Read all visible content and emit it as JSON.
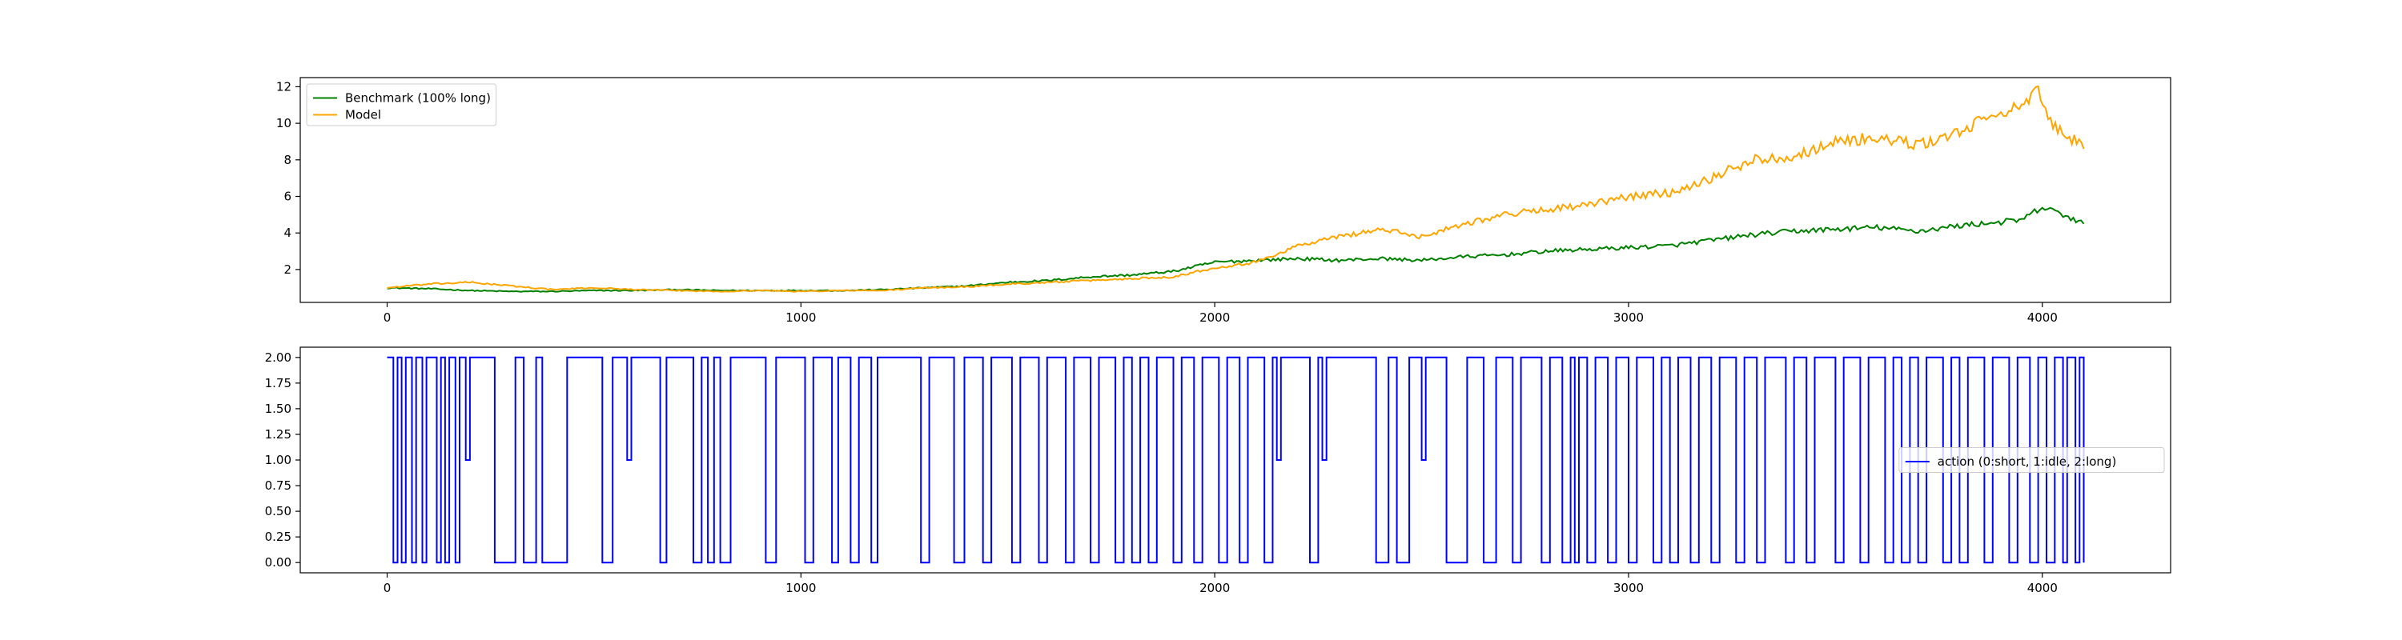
{
  "chart_data": [
    {
      "type": "line",
      "title": "",
      "xlabel": "",
      "ylabel": "",
      "xlim": [
        -210,
        4310
      ],
      "ylim": [
        0.2,
        12.5
      ],
      "xticks": [
        0,
        1000,
        2000,
        3000,
        4000
      ],
      "yticks": [
        2,
        4,
        6,
        8,
        10,
        12
      ],
      "ytick_labels": [
        "2",
        "4",
        "6",
        "8",
        "10",
        "12"
      ],
      "legend_position": "upper left",
      "grid": false,
      "x_range": [
        0,
        4100
      ],
      "series": [
        {
          "name": "Benchmark (100% long)",
          "color": "#008000",
          "points": [
            [
              0,
              1.0
            ],
            [
              100,
              0.95
            ],
            [
              200,
              0.85
            ],
            [
              300,
              0.8
            ],
            [
              400,
              0.8
            ],
            [
              500,
              0.85
            ],
            [
              600,
              0.85
            ],
            [
              700,
              0.9
            ],
            [
              800,
              0.85
            ],
            [
              900,
              0.85
            ],
            [
              1000,
              0.85
            ],
            [
              1100,
              0.85
            ],
            [
              1200,
              0.9
            ],
            [
              1300,
              1.0
            ],
            [
              1400,
              1.1
            ],
            [
              1500,
              1.3
            ],
            [
              1600,
              1.4
            ],
            [
              1700,
              1.6
            ],
            [
              1800,
              1.7
            ],
            [
              1900,
              1.9
            ],
            [
              2000,
              2.4
            ],
            [
              2100,
              2.5
            ],
            [
              2200,
              2.6
            ],
            [
              2300,
              2.5
            ],
            [
              2400,
              2.6
            ],
            [
              2500,
              2.5
            ],
            [
              2600,
              2.7
            ],
            [
              2700,
              2.8
            ],
            [
              2800,
              3.0
            ],
            [
              2900,
              3.1
            ],
            [
              3000,
              3.2
            ],
            [
              3100,
              3.3
            ],
            [
              3200,
              3.6
            ],
            [
              3300,
              3.9
            ],
            [
              3400,
              4.1
            ],
            [
              3500,
              4.2
            ],
            [
              3600,
              4.3
            ],
            [
              3700,
              4.1
            ],
            [
              3800,
              4.4
            ],
            [
              3900,
              4.6
            ],
            [
              3950,
              4.7
            ],
            [
              4000,
              5.4
            ],
            [
              4050,
              5.0
            ],
            [
              4100,
              4.5
            ]
          ]
        },
        {
          "name": "Model",
          "color": "#ffa500",
          "points": [
            [
              0,
              1.0
            ],
            [
              100,
              1.2
            ],
            [
              200,
              1.3
            ],
            [
              300,
              1.1
            ],
            [
              400,
              0.9
            ],
            [
              500,
              1.0
            ],
            [
              600,
              0.9
            ],
            [
              700,
              0.85
            ],
            [
              800,
              0.8
            ],
            [
              900,
              0.85
            ],
            [
              1000,
              0.8
            ],
            [
              1100,
              0.85
            ],
            [
              1200,
              0.85
            ],
            [
              1300,
              1.0
            ],
            [
              1400,
              1.05
            ],
            [
              1500,
              1.2
            ],
            [
              1600,
              1.3
            ],
            [
              1700,
              1.4
            ],
            [
              1800,
              1.5
            ],
            [
              1900,
              1.6
            ],
            [
              2000,
              2.1
            ],
            [
              2100,
              2.4
            ],
            [
              2200,
              3.3
            ],
            [
              2300,
              3.8
            ],
            [
              2400,
              4.2
            ],
            [
              2500,
              3.8
            ],
            [
              2600,
              4.5
            ],
            [
              2700,
              5.0
            ],
            [
              2800,
              5.3
            ],
            [
              2900,
              5.5
            ],
            [
              3000,
              6.0
            ],
            [
              3100,
              6.2
            ],
            [
              3200,
              7.0
            ],
            [
              3300,
              8.0
            ],
            [
              3400,
              8.2
            ],
            [
              3500,
              9.0
            ],
            [
              3600,
              9.2
            ],
            [
              3700,
              8.8
            ],
            [
              3800,
              9.5
            ],
            [
              3900,
              10.7
            ],
            [
              3950,
              10.8
            ],
            [
              3990,
              11.8
            ],
            [
              4020,
              10.0
            ],
            [
              4060,
              9.4
            ],
            [
              4100,
              8.6
            ]
          ]
        }
      ]
    },
    {
      "type": "line",
      "title": "",
      "xlabel": "",
      "ylabel": "",
      "xlim": [
        -210,
        4310
      ],
      "ylim": [
        -0.1,
        2.1
      ],
      "xticks": [
        0,
        1000,
        2000,
        3000,
        4000
      ],
      "yticks": [
        0,
        0.25,
        0.5,
        0.75,
        1.0,
        1.25,
        1.5,
        1.75,
        2.0
      ],
      "ytick_labels": [
        "0.00",
        "0.25",
        "0.50",
        "0.75",
        "1.00",
        "1.25",
        "1.50",
        "1.75",
        "2.00"
      ],
      "legend_position": "center right",
      "grid": false,
      "x_range": [
        0,
        4100
      ],
      "series": [
        {
          "name": "action (0:short, 1:idle, 2:long)",
          "color": "#0000ff",
          "drawstyle": "steps",
          "segments": [
            [
              0,
              2
            ],
            [
              15,
              0
            ],
            [
              25,
              2
            ],
            [
              35,
              0
            ],
            [
              45,
              2
            ],
            [
              60,
              0
            ],
            [
              70,
              2
            ],
            [
              85,
              0
            ],
            [
              95,
              2
            ],
            [
              120,
              0
            ],
            [
              130,
              2
            ],
            [
              140,
              0
            ],
            [
              150,
              2
            ],
            [
              165,
              0
            ],
            [
              175,
              2
            ],
            [
              190,
              1
            ],
            [
              200,
              2
            ],
            [
              260,
              0
            ],
            [
              310,
              2
            ],
            [
              330,
              0
            ],
            [
              360,
              2
            ],
            [
              375,
              0
            ],
            [
              435,
              2
            ],
            [
              520,
              0
            ],
            [
              545,
              2
            ],
            [
              580,
              1
            ],
            [
              590,
              2
            ],
            [
              660,
              0
            ],
            [
              675,
              2
            ],
            [
              740,
              0
            ],
            [
              760,
              2
            ],
            [
              775,
              0
            ],
            [
              790,
              2
            ],
            [
              805,
              0
            ],
            [
              830,
              2
            ],
            [
              915,
              0
            ],
            [
              940,
              2
            ],
            [
              1010,
              0
            ],
            [
              1030,
              2
            ],
            [
              1075,
              0
            ],
            [
              1090,
              2
            ],
            [
              1120,
              0
            ],
            [
              1140,
              2
            ],
            [
              1170,
              0
            ],
            [
              1185,
              2
            ],
            [
              1290,
              0
            ],
            [
              1310,
              2
            ],
            [
              1370,
              0
            ],
            [
              1395,
              2
            ],
            [
              1440,
              0
            ],
            [
              1460,
              2
            ],
            [
              1510,
              0
            ],
            [
              1530,
              2
            ],
            [
              1575,
              0
            ],
            [
              1595,
              2
            ],
            [
              1640,
              0
            ],
            [
              1660,
              2
            ],
            [
              1700,
              0
            ],
            [
              1720,
              2
            ],
            [
              1760,
              0
            ],
            [
              1780,
              2
            ],
            [
              1800,
              0
            ],
            [
              1820,
              2
            ],
            [
              1840,
              0
            ],
            [
              1860,
              2
            ],
            [
              1900,
              0
            ],
            [
              1920,
              2
            ],
            [
              1950,
              0
            ],
            [
              1970,
              2
            ],
            [
              2010,
              0
            ],
            [
              2030,
              2
            ],
            [
              2060,
              0
            ],
            [
              2080,
              2
            ],
            [
              2120,
              0
            ],
            [
              2140,
              2
            ],
            [
              2150,
              1
            ],
            [
              2160,
              2
            ],
            [
              2230,
              0
            ],
            [
              2250,
              2
            ],
            [
              2260,
              1
            ],
            [
              2270,
              2
            ],
            [
              2390,
              0
            ],
            [
              2420,
              2
            ],
            [
              2440,
              0
            ],
            [
              2470,
              2
            ],
            [
              2500,
              1
            ],
            [
              2510,
              2
            ],
            [
              2560,
              0
            ],
            [
              2610,
              2
            ],
            [
              2650,
              0
            ],
            [
              2680,
              2
            ],
            [
              2720,
              0
            ],
            [
              2740,
              2
            ],
            [
              2790,
              0
            ],
            [
              2810,
              2
            ],
            [
              2840,
              0
            ],
            [
              2860,
              2
            ],
            [
              2870,
              0
            ],
            [
              2880,
              2
            ],
            [
              2900,
              0
            ],
            [
              2920,
              2
            ],
            [
              2950,
              0
            ],
            [
              2970,
              2
            ],
            [
              3000,
              0
            ],
            [
              3020,
              2
            ],
            [
              3060,
              0
            ],
            [
              3080,
              2
            ],
            [
              3100,
              0
            ],
            [
              3120,
              2
            ],
            [
              3150,
              0
            ],
            [
              3170,
              2
            ],
            [
              3200,
              0
            ],
            [
              3220,
              2
            ],
            [
              3260,
              0
            ],
            [
              3280,
              2
            ],
            [
              3310,
              0
            ],
            [
              3330,
              2
            ],
            [
              3380,
              0
            ],
            [
              3400,
              2
            ],
            [
              3430,
              0
            ],
            [
              3450,
              2
            ],
            [
              3500,
              0
            ],
            [
              3520,
              2
            ],
            [
              3560,
              0
            ],
            [
              3580,
              2
            ],
            [
              3620,
              0
            ],
            [
              3640,
              2
            ],
            [
              3660,
              0
            ],
            [
              3680,
              2
            ],
            [
              3700,
              0
            ],
            [
              3720,
              2
            ],
            [
              3760,
              0
            ],
            [
              3780,
              2
            ],
            [
              3800,
              0
            ],
            [
              3820,
              2
            ],
            [
              3860,
              0
            ],
            [
              3880,
              2
            ],
            [
              3920,
              0
            ],
            [
              3940,
              2
            ],
            [
              3970,
              0
            ],
            [
              3990,
              2
            ],
            [
              4010,
              0
            ],
            [
              4030,
              2
            ],
            [
              4050,
              0
            ],
            [
              4060,
              2
            ],
            [
              4080,
              0
            ],
            [
              4090,
              2
            ],
            [
              4100,
              0
            ]
          ]
        }
      ]
    }
  ]
}
